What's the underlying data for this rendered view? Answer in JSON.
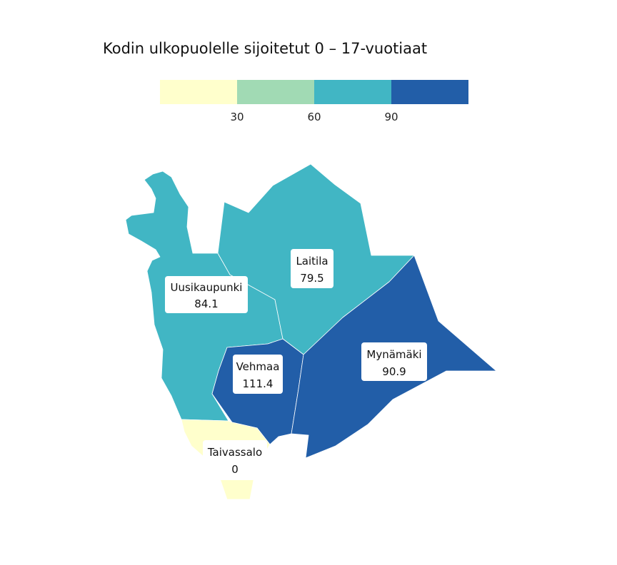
{
  "title": "Kodin ulkopuolelle sijoitetut 0 – 17-vuotiaat",
  "legend": {
    "colors": [
      "#ffffcc",
      "#a1dab4",
      "#41b6c4",
      "#225ea8"
    ],
    "ticks": [
      "30",
      "60",
      "90"
    ]
  },
  "municipalities": [
    {
      "name": "Uusikaupunki",
      "value": "84.1",
      "color": "#41b6c4"
    },
    {
      "name": "Laitila",
      "value": "79.5",
      "color": "#41b6c4"
    },
    {
      "name": "Vehmaa",
      "value": "111.4",
      "color": "#225ea8"
    },
    {
      "name": "Mynämäki",
      "value": "90.9",
      "color": "#225ea8"
    },
    {
      "name": "Taivassalo",
      "value": "0",
      "color": "#ffffcc"
    }
  ]
}
